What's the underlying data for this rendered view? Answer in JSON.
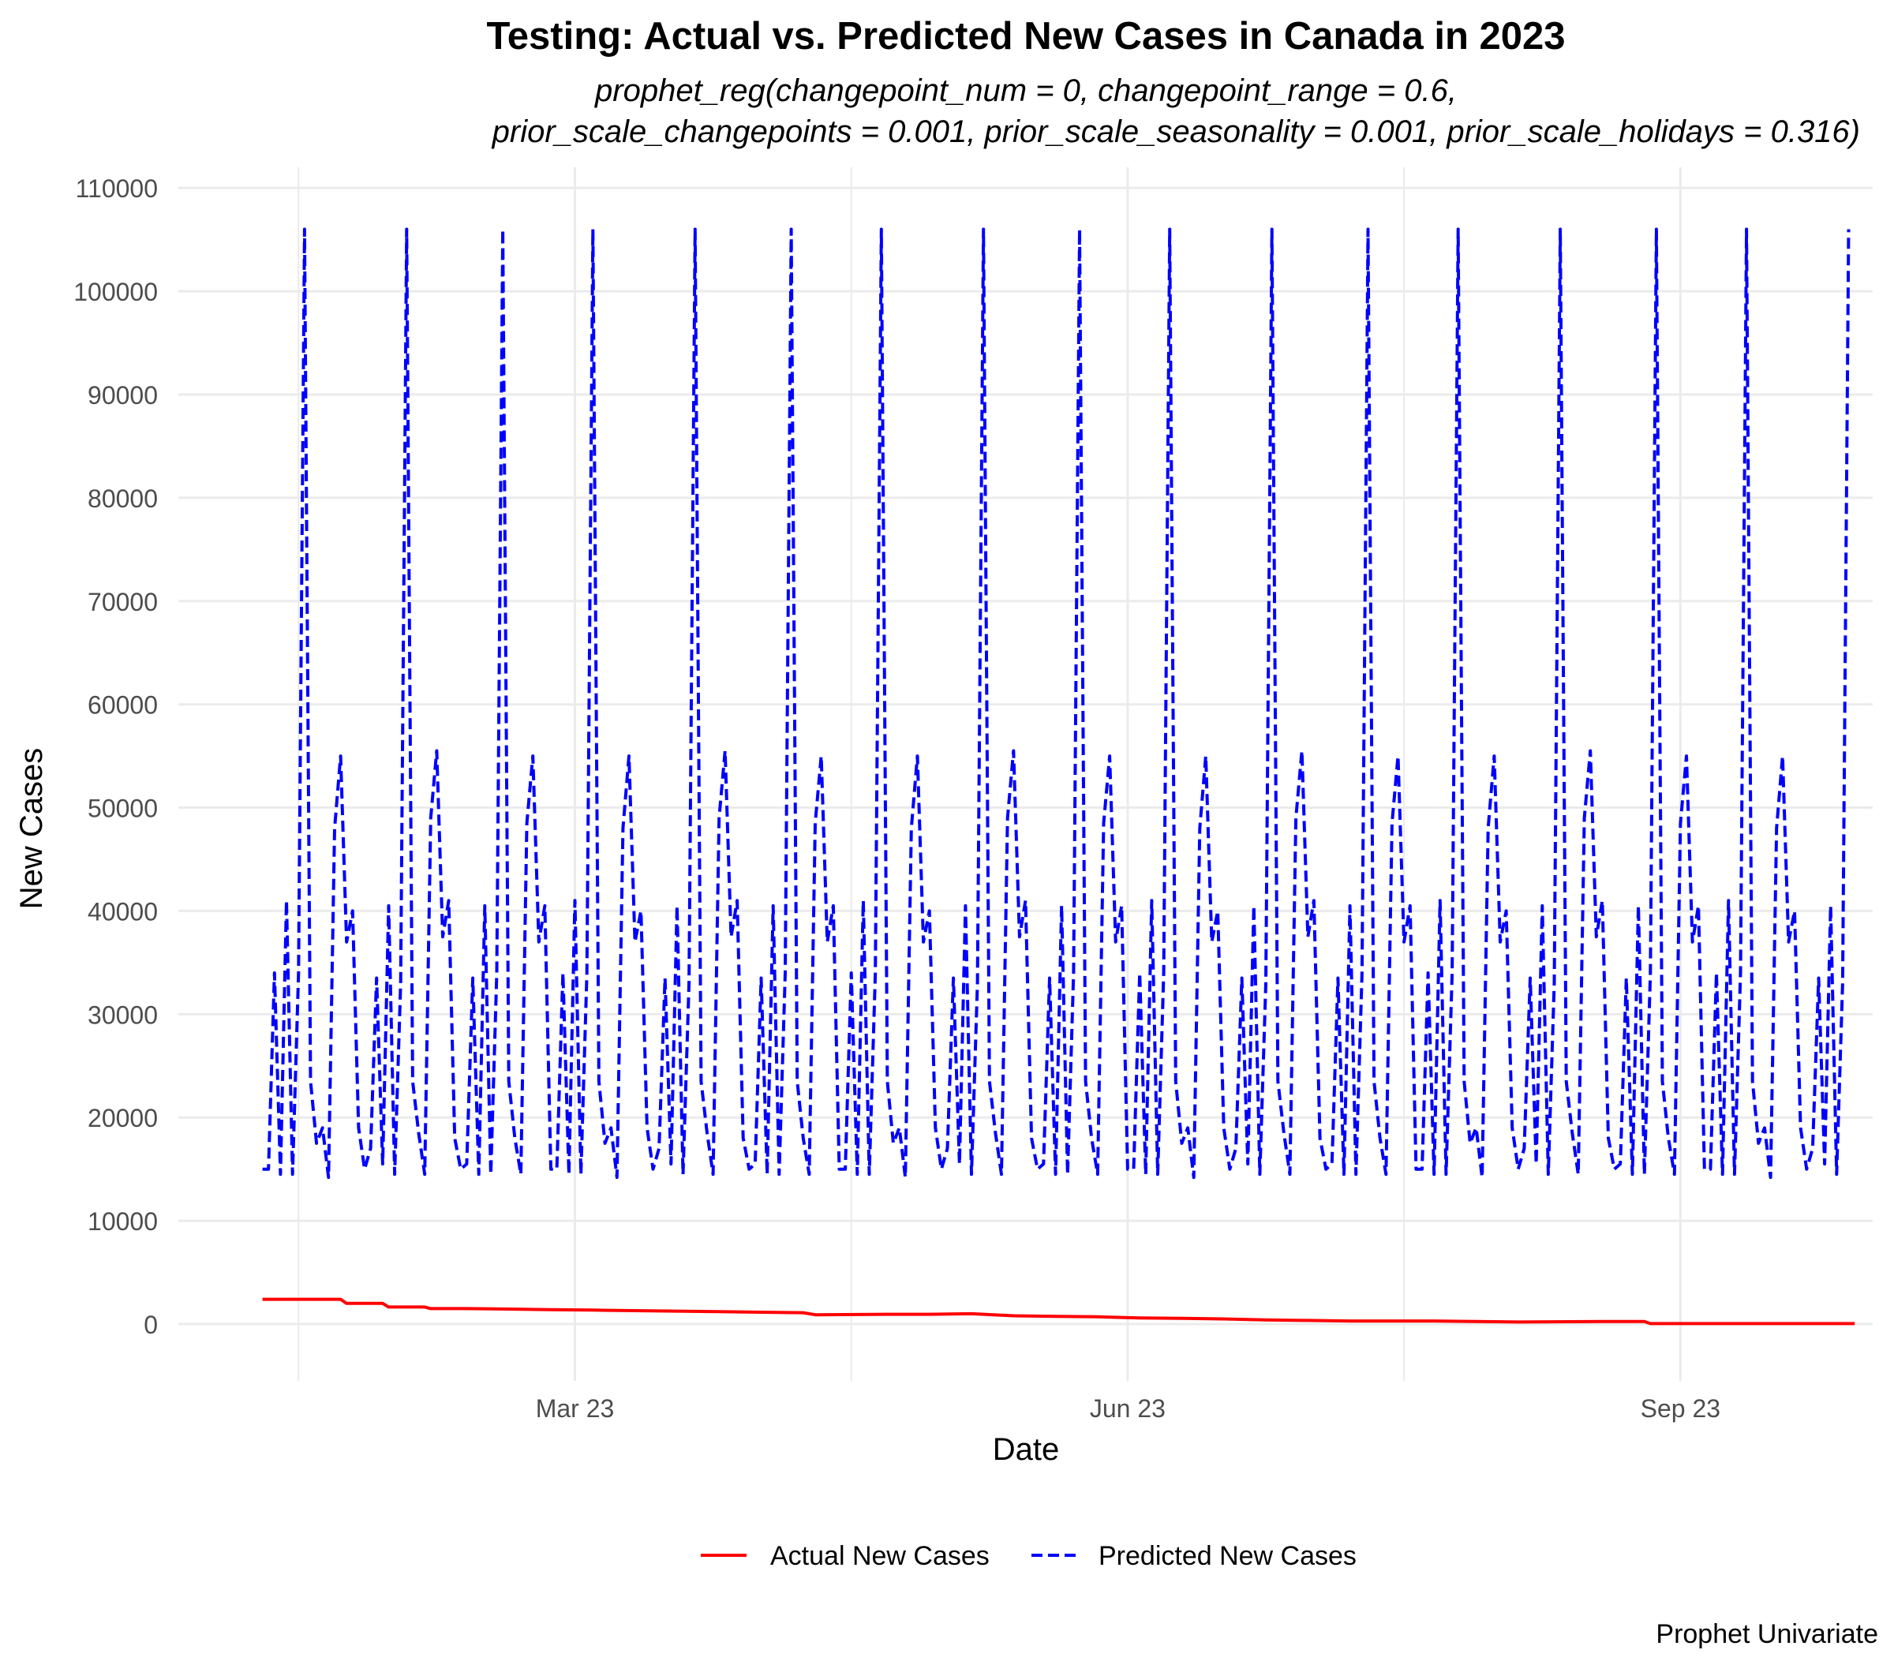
{
  "chart_data": {
    "type": "line",
    "title": "Testing: Actual vs. Predicted New Cases in Canada in 2023",
    "subtitle_lines": [
      "prophet_reg(changepoint_num = 0, changepoint_range = 0.6,",
      "prior_scale_changepoints = 0.001, prior_scale_seasonality = 0.001, prior_scale_holidays = 0.316)"
    ],
    "xlabel": "Date",
    "ylabel": "New Cases",
    "caption": "Prophet Univariate",
    "x_start": "2023-01-08",
    "x_range": [
      "2022-12-25",
      "2023-10-03"
    ],
    "ylim": [
      -5500,
      112000
    ],
    "x_ticks": [
      {
        "date": "2023-03-01",
        "label": "Mar 23"
      },
      {
        "date": "2023-06-01",
        "label": "Jun 23"
      },
      {
        "date": "2023-09-01",
        "label": "Sep 23"
      }
    ],
    "y_ticks": [
      0,
      10000,
      20000,
      30000,
      40000,
      50000,
      60000,
      70000,
      80000,
      90000,
      100000,
      110000
    ],
    "grid": true,
    "legend_position": "bottom",
    "series": [
      {
        "name": "Actual New Cases",
        "color": "#ff0000",
        "line_style": "solid",
        "points": [
          [
            "2023-01-08",
            2400
          ],
          [
            "2023-01-21",
            2400
          ],
          [
            "2023-01-22",
            2000
          ],
          [
            "2023-01-28",
            2000
          ],
          [
            "2023-01-29",
            1650
          ],
          [
            "2023-02-04",
            1650
          ],
          [
            "2023-02-05",
            1500
          ],
          [
            "2023-02-11",
            1500
          ],
          [
            "2023-02-18",
            1450
          ],
          [
            "2023-02-25",
            1400
          ],
          [
            "2023-03-04",
            1350
          ],
          [
            "2023-03-11",
            1300
          ],
          [
            "2023-03-18",
            1250
          ],
          [
            "2023-03-25",
            1200
          ],
          [
            "2023-04-01",
            1150
          ],
          [
            "2023-04-08",
            1100
          ],
          [
            "2023-04-10",
            900
          ],
          [
            "2023-04-22",
            950
          ],
          [
            "2023-04-29",
            950
          ],
          [
            "2023-05-06",
            1000
          ],
          [
            "2023-05-13",
            800
          ],
          [
            "2023-05-20",
            750
          ],
          [
            "2023-05-27",
            700
          ],
          [
            "2023-06-03",
            600
          ],
          [
            "2023-06-10",
            550
          ],
          [
            "2023-06-17",
            500
          ],
          [
            "2023-06-24",
            400
          ],
          [
            "2023-07-01",
            350
          ],
          [
            "2023-07-08",
            300
          ],
          [
            "2023-07-22",
            300
          ],
          [
            "2023-07-29",
            250
          ],
          [
            "2023-08-05",
            200
          ],
          [
            "2023-08-19",
            250
          ],
          [
            "2023-08-26",
            250
          ],
          [
            "2023-08-27",
            50
          ],
          [
            "2023-09-30",
            50
          ]
        ]
      },
      {
        "name": "Predicted New Cases",
        "color": "#0000ff",
        "line_style": "dashed",
        "weekly_pattern": [
          [
            15000,
            15000,
            34000,
            14500,
            41000,
            14500,
            34000,
            106000,
            23500,
            17500,
            19000,
            14200,
            48000,
            55000,
            37000,
            40000
          ],
          [
            19000,
            15000,
            17000,
            33500,
            15500,
            40500,
            14500,
            33000,
            106000,
            23500,
            18500,
            14500,
            49000,
            55500,
            37500,
            41000
          ],
          [
            18000,
            15000,
            15500,
            33500,
            14500,
            40500,
            14500,
            34000,
            106000,
            23500,
            18000,
            14500,
            48500,
            55000,
            37000,
            40500
          ]
        ],
        "points": [
          [
            "2023-01-08",
            15000
          ],
          [
            "2023-01-09",
            15500
          ],
          [
            "2023-01-10",
            34000
          ],
          [
            "2023-01-11",
            14300
          ],
          [
            "2023-01-12",
            41000
          ],
          [
            "2023-01-13",
            14300
          ],
          [
            "2023-01-14",
            34000
          ],
          [
            "2023-01-15",
            106000
          ],
          [
            "2023-01-16",
            23500
          ],
          [
            "2023-01-17",
            17500
          ],
          [
            "2023-01-18",
            19000
          ],
          [
            "2023-01-19",
            14200
          ],
          [
            "2023-01-20",
            48000
          ],
          [
            "2023-01-21",
            55000
          ],
          [
            "2023-01-22",
            37000
          ],
          [
            "2023-01-23",
            40000
          ],
          [
            "2023-01-24",
            19000
          ],
          [
            "2023-01-25",
            15000
          ],
          [
            "2023-01-26",
            17000
          ],
          [
            "2023-01-27",
            33500
          ],
          [
            "2023-01-28",
            15500
          ],
          [
            "2023-01-29",
            40500
          ],
          [
            "2023-01-30",
            14300
          ],
          [
            "2023-01-31",
            33000
          ],
          [
            "2023-02-01",
            106000
          ],
          [
            "2023-02-02",
            23500
          ],
          [
            "2023-02-03",
            18500
          ],
          [
            "2023-02-04",
            14500
          ],
          [
            "2023-02-05",
            49000
          ],
          [
            "2023-02-06",
            55500
          ],
          [
            "2023-02-07",
            37500
          ],
          [
            "2023-02-08",
            41000
          ],
          [
            "2023-02-09",
            18000
          ],
          [
            "2023-02-10",
            15000
          ],
          [
            "2023-02-11",
            15500
          ],
          [
            "2023-02-12",
            33500
          ],
          [
            "2023-02-13",
            14500
          ],
          [
            "2023-02-14",
            40500
          ],
          [
            "2023-02-15",
            14300
          ],
          [
            "2023-02-16",
            34000
          ],
          [
            "2023-02-17",
            106000
          ],
          [
            "2023-02-18",
            23500
          ],
          [
            "2023-02-19",
            18000
          ],
          [
            "2023-02-20",
            14500
          ],
          [
            "2023-02-21",
            48500
          ],
          [
            "2023-02-22",
            55000
          ],
          [
            "2023-02-23",
            37000
          ],
          [
            "2023-02-24",
            40500
          ]
        ]
      }
    ]
  }
}
